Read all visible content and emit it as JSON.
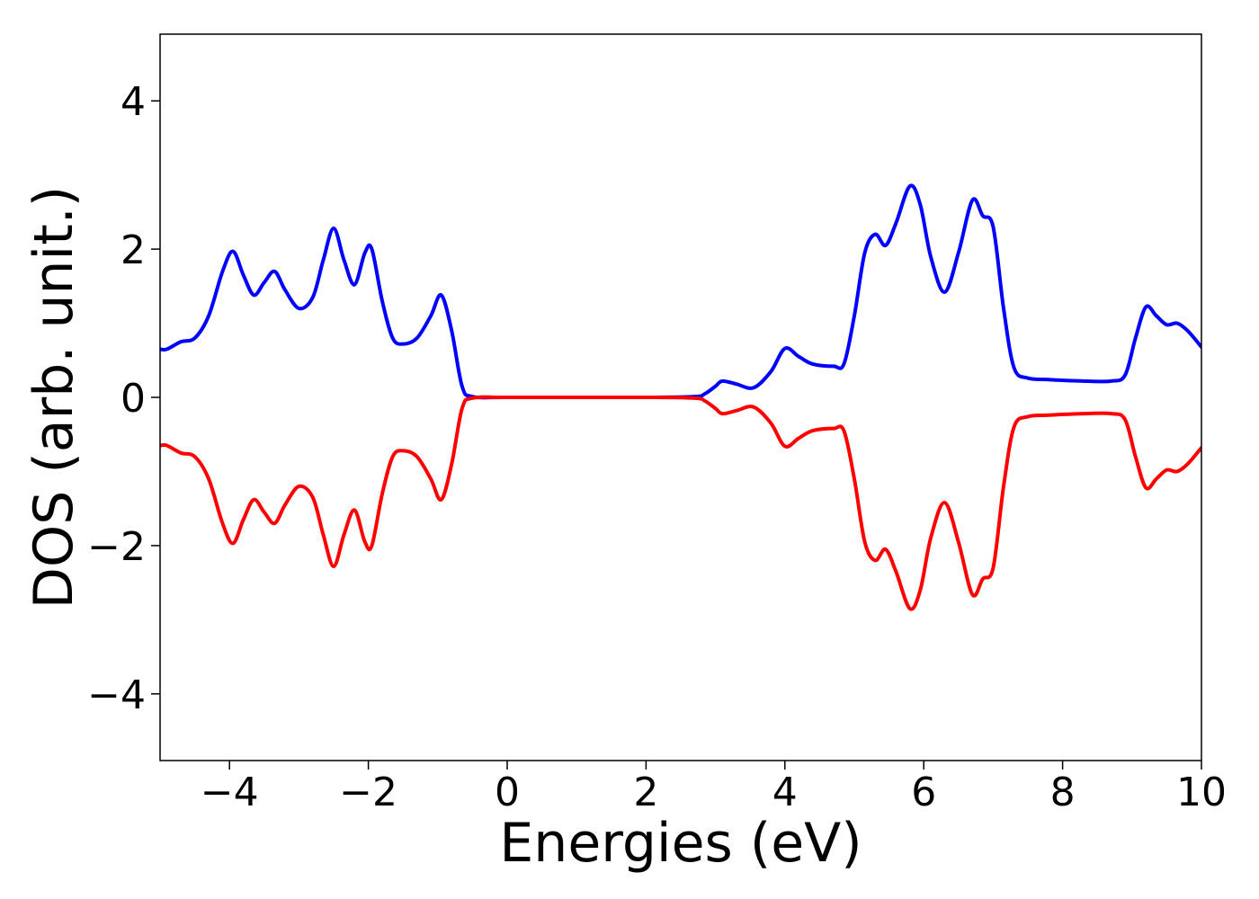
{
  "chart_data": {
    "type": "line",
    "xlabel": "Energies (eV)",
    "ylabel": "DOS (arb. unit.)",
    "xlim": [
      -5,
      10
    ],
    "ylim": [
      -4.9,
      4.9
    ],
    "x_ticks": [
      -4,
      -2,
      0,
      2,
      4,
      6,
      8,
      10
    ],
    "x_tick_labels": [
      "−4",
      "−2",
      "0",
      "2",
      "4",
      "6",
      "8",
      "10"
    ],
    "y_ticks": [
      -4,
      -2,
      0,
      2,
      4
    ],
    "y_tick_labels": [
      "−4",
      "−2",
      "0",
      "2",
      "4"
    ],
    "grid": false,
    "series": [
      {
        "color": "#0000ff",
        "x": [
          -5.0,
          -4.9,
          -4.7,
          -4.5,
          -4.3,
          -4.1,
          -3.95,
          -3.8,
          -3.65,
          -3.5,
          -3.35,
          -3.2,
          -3.0,
          -2.8,
          -2.65,
          -2.5,
          -2.35,
          -2.2,
          -2.05,
          -1.95,
          -1.8,
          -1.65,
          -1.5,
          -1.3,
          -1.1,
          -0.95,
          -0.8,
          -0.65,
          -0.5,
          0.0,
          1.0,
          2.0,
          2.7,
          2.85,
          3.0,
          3.1,
          3.3,
          3.55,
          3.8,
          4.0,
          4.2,
          4.4,
          4.7,
          4.85,
          5.0,
          5.15,
          5.3,
          5.45,
          5.6,
          5.8,
          5.95,
          6.1,
          6.3,
          6.5,
          6.7,
          6.85,
          7.0,
          7.15,
          7.3,
          7.5,
          7.8,
          8.3,
          8.7,
          8.9,
          9.05,
          9.2,
          9.35,
          9.5,
          9.65,
          9.8,
          10.0
        ],
        "y": [
          0.65,
          0.65,
          0.75,
          0.8,
          1.1,
          1.7,
          1.97,
          1.65,
          1.38,
          1.55,
          1.7,
          1.45,
          1.2,
          1.35,
          1.85,
          2.28,
          1.85,
          1.52,
          1.95,
          2.0,
          1.3,
          0.8,
          0.72,
          0.8,
          1.1,
          1.38,
          0.9,
          0.15,
          0.01,
          0.0,
          0.0,
          0.0,
          0.01,
          0.05,
          0.15,
          0.22,
          0.18,
          0.13,
          0.35,
          0.66,
          0.55,
          0.45,
          0.42,
          0.45,
          1.1,
          1.95,
          2.2,
          2.05,
          2.35,
          2.85,
          2.6,
          1.9,
          1.42,
          1.95,
          2.66,
          2.45,
          2.3,
          1.2,
          0.4,
          0.26,
          0.24,
          0.22,
          0.22,
          0.3,
          0.8,
          1.22,
          1.1,
          0.98,
          1.0,
          0.9,
          0.68
        ]
      },
      {
        "color": "#ff0000",
        "x": [
          -5.0,
          -4.9,
          -4.7,
          -4.5,
          -4.3,
          -4.1,
          -3.95,
          -3.8,
          -3.65,
          -3.5,
          -3.35,
          -3.2,
          -3.0,
          -2.8,
          -2.65,
          -2.5,
          -2.35,
          -2.2,
          -2.05,
          -1.95,
          -1.8,
          -1.65,
          -1.5,
          -1.3,
          -1.1,
          -0.95,
          -0.8,
          -0.65,
          -0.5,
          0.0,
          1.0,
          2.0,
          2.7,
          2.85,
          3.0,
          3.1,
          3.3,
          3.55,
          3.8,
          4.0,
          4.2,
          4.4,
          4.7,
          4.85,
          5.0,
          5.15,
          5.3,
          5.45,
          5.6,
          5.8,
          5.95,
          6.1,
          6.3,
          6.5,
          6.7,
          6.85,
          7.0,
          7.15,
          7.3,
          7.5,
          7.8,
          8.3,
          8.7,
          8.9,
          9.05,
          9.2,
          9.35,
          9.5,
          9.65,
          9.8,
          10.0
        ],
        "y": [
          -0.65,
          -0.65,
          -0.75,
          -0.8,
          -1.1,
          -1.7,
          -1.97,
          -1.65,
          -1.38,
          -1.55,
          -1.7,
          -1.45,
          -1.2,
          -1.35,
          -1.85,
          -2.28,
          -1.85,
          -1.52,
          -1.95,
          -2.0,
          -1.3,
          -0.8,
          -0.72,
          -0.8,
          -1.1,
          -1.38,
          -0.9,
          -0.15,
          -0.01,
          0.0,
          0.0,
          0.0,
          -0.01,
          -0.05,
          -0.15,
          -0.22,
          -0.18,
          -0.13,
          -0.35,
          -0.66,
          -0.55,
          -0.45,
          -0.42,
          -0.45,
          -1.1,
          -1.95,
          -2.2,
          -2.05,
          -2.35,
          -2.85,
          -2.6,
          -1.9,
          -1.42,
          -1.95,
          -2.66,
          -2.45,
          -2.3,
          -1.2,
          -0.4,
          -0.26,
          -0.24,
          -0.22,
          -0.22,
          -0.3,
          -0.8,
          -1.22,
          -1.1,
          -0.98,
          -1.0,
          -0.9,
          -0.68
        ]
      }
    ]
  }
}
